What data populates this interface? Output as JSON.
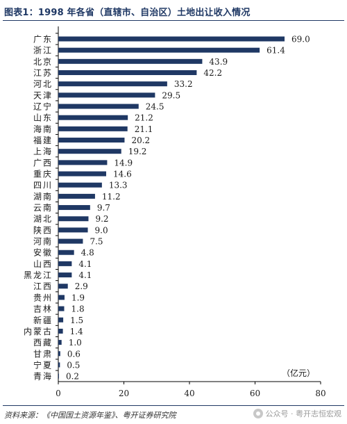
{
  "header": {
    "title": "图表1：1998 年各省（直辖市、自治区）土地出让收入情况"
  },
  "footer": {
    "source": "资料来源：《中国国土资源年鉴》、粤开证券研究院",
    "watermark": "公众号 · 粤开志恒宏观"
  },
  "colors": {
    "bar": "#1f3864",
    "title": "#1f3864",
    "axis": "#000000",
    "text": "#1a1a1a"
  },
  "chart_data": {
    "type": "bar",
    "orientation": "horizontal",
    "categories": [
      "广东",
      "浙江",
      "北京",
      "江苏",
      "河北",
      "天津",
      "辽宁",
      "山东",
      "海南",
      "福建",
      "上海",
      "广西",
      "重庆",
      "四川",
      "湖南",
      "云南",
      "湖北",
      "陕西",
      "河南",
      "安徽",
      "山西",
      "黑龙江",
      "江西",
      "贵州",
      "吉林",
      "新疆",
      "内蒙古",
      "西藏",
      "甘肃",
      "宁夏",
      "青海"
    ],
    "values": [
      69.0,
      61.4,
      43.9,
      42.2,
      33.2,
      29.5,
      24.5,
      21.2,
      21.1,
      20.2,
      19.2,
      14.9,
      14.6,
      13.3,
      11.2,
      9.7,
      9.2,
      9.0,
      7.5,
      4.8,
      4.1,
      4.1,
      2.9,
      1.9,
      1.8,
      1.5,
      1.4,
      1.0,
      0.6,
      0.5,
      0.2
    ],
    "value_labels": [
      "69.0",
      "61.4",
      "43.9",
      "42.2",
      "33.2",
      "29.5",
      "24.5",
      "21.2",
      "21.1",
      "20.2",
      "19.2",
      "14.9",
      "14.6",
      "13.3",
      "11.2",
      "9.7",
      "9.2",
      "9.0",
      "7.5",
      "4.8",
      "4.1",
      "4.1",
      "2.9",
      "1.9",
      "1.8",
      "1.5",
      "1.4",
      "1.0",
      "0.6",
      "0.5",
      "0.2"
    ],
    "xlim": [
      0,
      80
    ],
    "xticks": [
      0,
      20,
      40,
      60,
      80
    ],
    "unit_label": "（亿元）",
    "grid": false,
    "legend": "none"
  }
}
